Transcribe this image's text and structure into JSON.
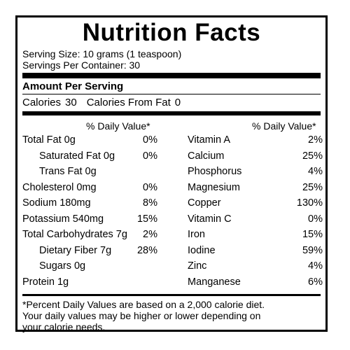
{
  "title": "Nutrition Facts",
  "serving_size": "Serving Size: 10 grams (1 teaspoon)",
  "servings_per_container": "Servings Per Container: 30",
  "amount_per_serving": "Amount Per Serving",
  "calories_label": "Calories",
  "calories_value": "30",
  "calories_fat_label": "Calories From Fat",
  "calories_fat_value": "0",
  "left_dv_header": "% Daily Value*",
  "right_dv_header": "% Daily Value*",
  "left_rows": [
    {
      "label": "Total Fat 0g",
      "pct": "0%"
    },
    {
      "label": "Saturated Fat 0g",
      "pct": "0%"
    },
    {
      "label": "Trans Fat 0g",
      "pct": ""
    },
    {
      "label": "Cholesterol 0mg",
      "pct": "0%"
    },
    {
      "label": "Sodium 180mg",
      "pct": "8%"
    },
    {
      "label": "Potassium 540mg",
      "pct": "15%"
    },
    {
      "label": "Total Carbohydrates 7g",
      "pct": "2%"
    },
    {
      "label": "Dietary Fiber 7g",
      "pct": "28%"
    },
    {
      "label": "Sugars 0g",
      "pct": ""
    },
    {
      "label": "Protein 1g",
      "pct": ""
    }
  ],
  "right_rows": [
    {
      "label": "Vitamin A",
      "pct": "2%"
    },
    {
      "label": "Calcium",
      "pct": "25%"
    },
    {
      "label": "Phosphorus",
      "pct": "4%"
    },
    {
      "label": "Magnesium",
      "pct": "25%"
    },
    {
      "label": "Copper",
      "pct": "130%"
    },
    {
      "label": "Vitamin C",
      "pct": "0%"
    },
    {
      "label": "Iron",
      "pct": "15%"
    },
    {
      "label": "Iodine",
      "pct": "59%"
    },
    {
      "label": "Zinc",
      "pct": "4%"
    },
    {
      "label": "Manganese",
      "pct": "6%"
    }
  ],
  "footnote": {
    "line1": "*Percent Daily Values are based on a 2,000 calorie diet.",
    "line2": "Your daily values may be higher or lower depending on",
    "line3": "your calorie needs."
  }
}
